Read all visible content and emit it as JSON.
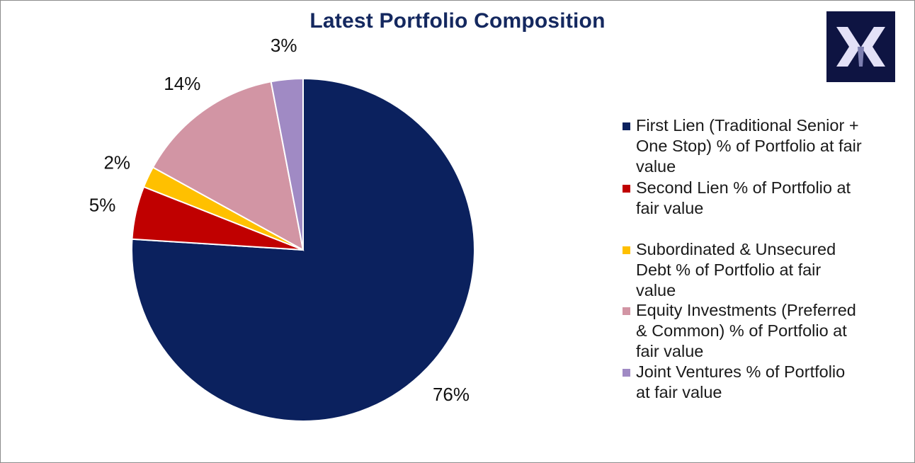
{
  "chart_data": {
    "type": "pie",
    "title": "Latest Portfolio Composition",
    "categories": [
      "First Lien (Traditional Senior + One Stop) % of Portfolio at fair value",
      "Second Lien  % of Portfolio at fair value",
      "Subordinated & Unsecured Debt  % of Portfolio at fair value",
      "Equity Investments (Preferred & Common)  % of Portfolio at fair value",
      "Joint Ventures % of Portfolio at fair value"
    ],
    "values": [
      76,
      5,
      2,
      14,
      3
    ],
    "value_labels": [
      "76%",
      "5%",
      "2%",
      "14%",
      "3%"
    ],
    "colors": [
      "#0b215e",
      "#c00000",
      "#ffc000",
      "#d295a4",
      "#a08ac4"
    ],
    "start_angle_deg": 0,
    "direction": "clockwise",
    "legend_position": "right"
  },
  "logo": {
    "name": "company-logo",
    "background": "#0e1442",
    "mark_color": "#e3e1f7"
  }
}
